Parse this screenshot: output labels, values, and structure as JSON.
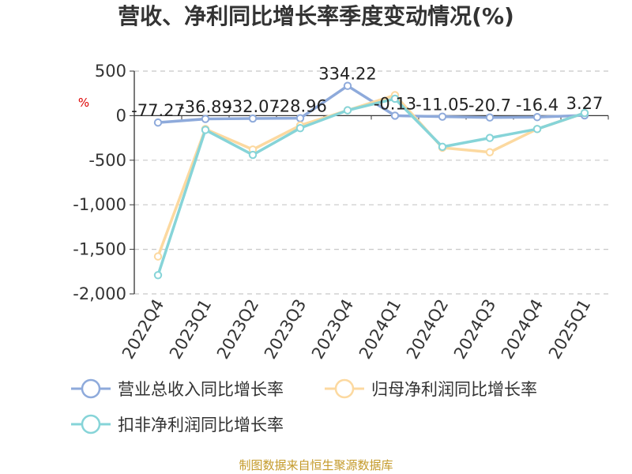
{
  "chart_data": {
    "type": "line",
    "title": "营收、净利同比增长率季度变动情况(%)",
    "unit_label": "%",
    "categories": [
      "2022Q4",
      "2023Q1",
      "2023Q2",
      "2023Q3",
      "2023Q4",
      "2024Q1",
      "2024Q2",
      "2024Q3",
      "2024Q4",
      "2025Q1"
    ],
    "y_ticks": [
      "500",
      "0",
      "-500",
      "-1,000",
      "-1,500",
      "-2,000"
    ],
    "ylim": [
      -2000,
      500
    ],
    "grid": true,
    "legend_position": "bottom",
    "series": [
      {
        "name": "营业总收入同比增长率",
        "color": "#8eaadb",
        "values": [
          -77.27,
          -36.89,
          -32.07,
          -28.96,
          334.22,
          -0.13,
          -11.05,
          -20.7,
          -16.4,
          3.27
        ],
        "labels": [
          "-77.27",
          "-36.89",
          "-32.07",
          "-28.96",
          "334.22",
          "-0.13",
          "-11.05",
          "-20.7",
          "-16.4",
          "3.27"
        ]
      },
      {
        "name": "归母净利润同比增长率",
        "color": "#fcd9a0",
        "values": [
          -1580,
          -150,
          -380,
          -110,
          60,
          230,
          -360,
          -410,
          -150,
          30
        ]
      },
      {
        "name": "扣非净利润同比增长率",
        "color": "#86d4d8",
        "values": [
          -1790,
          -160,
          -440,
          -140,
          60,
          190,
          -350,
          -250,
          -150,
          30
        ]
      }
    ]
  },
  "source_text": "制图数据来自恒生聚源数据库"
}
